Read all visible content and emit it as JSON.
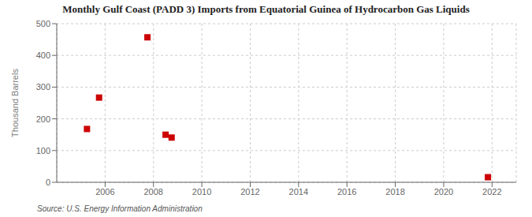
{
  "chart_data": {
    "type": "scatter",
    "title": "Monthly Gulf Coast (PADD 3) Imports from Equatorial Guinea of Hydrocarbon Gas Liquids",
    "ylabel": "Thousand Barrels",
    "annotations": [
      "Source: U.S. Energy Information Administration"
    ],
    "x": [
      2005.25,
      2005.75,
      2007.75,
      2008.5,
      2008.75,
      2021.83
    ],
    "values": [
      168,
      267,
      457,
      150,
      141,
      16
    ],
    "color": "#cc0000",
    "marker": "square",
    "xlim": [
      2004,
      2023
    ],
    "ylim": [
      0,
      500
    ],
    "xticks": [
      2006,
      2008,
      2010,
      2012,
      2014,
      2016,
      2018,
      2020,
      2022
    ],
    "yticks": [
      0,
      100,
      200,
      300,
      400,
      500
    ],
    "grid": true
  }
}
